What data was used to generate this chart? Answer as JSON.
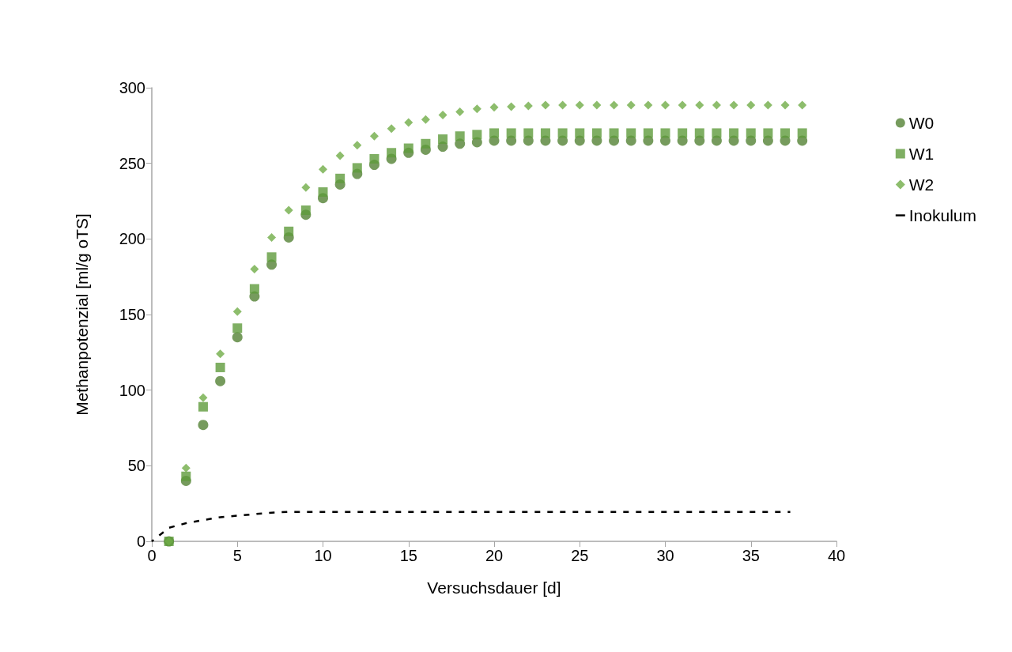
{
  "chart_data": {
    "type": "scatter",
    "xlabel": "Versuchsdauer [d]",
    "ylabel": "Methanpotenzial [ml/g oTS]",
    "xlim": [
      0,
      40
    ],
    "xticks": [
      0,
      5,
      10,
      15,
      20,
      25,
      30,
      35,
      40
    ],
    "ylim": [
      0,
      300
    ],
    "yticks": [
      0,
      50,
      100,
      150,
      200,
      250,
      300
    ],
    "grid": false,
    "legend": "right",
    "x": [
      1,
      2,
      3,
      4,
      5,
      6,
      7,
      8,
      9,
      10,
      11,
      12,
      13,
      14,
      15,
      16,
      17,
      18,
      19,
      20,
      21,
      22,
      23,
      24,
      25,
      26,
      27,
      28,
      29,
      30,
      31,
      32,
      33,
      34,
      35,
      36,
      37,
      38
    ],
    "series": [
      {
        "name": "W0",
        "color": "#548235",
        "marker": "circle",
        "values": [
          0,
          40,
          77,
          106,
          135,
          162,
          183,
          201,
          216,
          227,
          236,
          243,
          249,
          253,
          257,
          259,
          261,
          263,
          264,
          265,
          265,
          265,
          265,
          265,
          265,
          265,
          265,
          265,
          265,
          265,
          265,
          265,
          265,
          265,
          265,
          265,
          265,
          265
        ]
      },
      {
        "name": "W1",
        "color": "#5f9b3c",
        "marker": "square",
        "values": [
          0,
          43,
          89,
          115,
          141,
          167,
          188,
          205,
          219,
          231,
          240,
          247,
          253,
          257,
          260,
          263,
          266,
          268,
          269,
          270,
          270,
          270,
          270,
          270,
          270,
          270,
          270,
          270,
          270,
          270,
          270,
          270,
          270,
          270,
          270,
          270,
          270,
          270
        ]
      },
      {
        "name": "W2",
        "color": "#70ad47",
        "marker": "diamond",
        "values": [
          0,
          48.5,
          95,
          124,
          152,
          180,
          201,
          219,
          234,
          246,
          255,
          262,
          268,
          273,
          277,
          279,
          282,
          284,
          286,
          287,
          287.5,
          288,
          288.5,
          288.5,
          288.5,
          288.5,
          288.5,
          288.5,
          288.5,
          288.5,
          288.5,
          288.5,
          288.5,
          288.5,
          288.5,
          288.5,
          288.5,
          288.5
        ]
      },
      {
        "name": "Inokulum",
        "type": "line",
        "color": "#000000",
        "marker": "none",
        "line_style": "dashed",
        "x": [
          0,
          1,
          2,
          3,
          4,
          5,
          6,
          7,
          8,
          9,
          10,
          15,
          20,
          25,
          30,
          37.3
        ],
        "values": [
          0,
          9,
          12,
          14,
          16,
          17,
          18,
          19,
          19.5,
          19.5,
          19.5,
          19.5,
          19.5,
          19.5,
          19.5,
          19.5
        ]
      }
    ]
  }
}
